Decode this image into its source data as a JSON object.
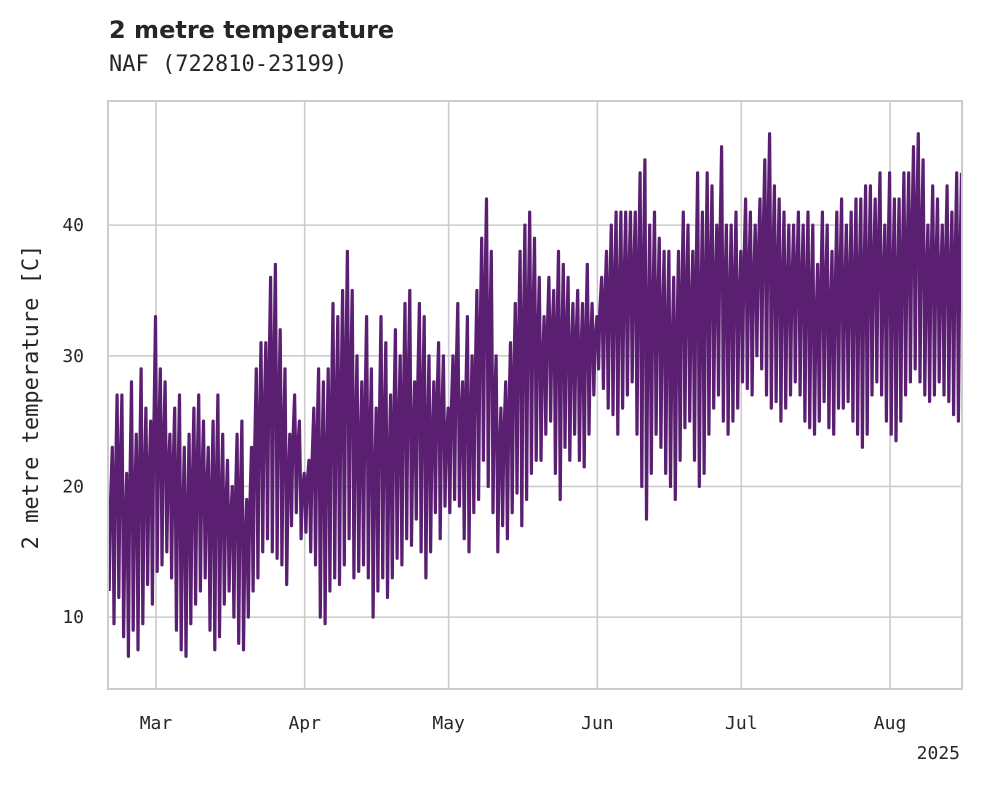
{
  "chart_data": {
    "type": "line",
    "title": "2 metre temperature",
    "subtitle": "NAF (722810-23199)",
    "ylabel": "2 metre temperature [C]",
    "xlabel": "",
    "x_range": [
      "2025-02-19",
      "2025-08-16"
    ],
    "ylim": [
      4.5,
      49.5
    ],
    "grid": true,
    "color": "#5b1f72",
    "xticks": [
      {
        "date": "2025-03-01",
        "label": "Mar"
      },
      {
        "date": "2025-04-01",
        "label": "Apr"
      },
      {
        "date": "2025-05-01",
        "label": "May"
      },
      {
        "date": "2025-06-01",
        "label": "Jun"
      },
      {
        "date": "2025-07-01",
        "label": "Jul"
      },
      {
        "date": "2025-08-01",
        "label": "Aug"
      }
    ],
    "year_label": "2025",
    "yticks": [
      10,
      20,
      30,
      40
    ],
    "series": [
      {
        "name": "",
        "x": [
          "2025-02-19",
          "2025-02-20",
          "2025-02-21",
          "2025-02-22",
          "2025-02-23",
          "2025-02-24",
          "2025-02-25",
          "2025-02-26",
          "2025-02-27",
          "2025-02-28",
          "2025-03-01",
          "2025-03-02",
          "2025-03-03",
          "2025-03-04",
          "2025-03-05",
          "2025-03-06",
          "2025-03-07",
          "2025-03-08",
          "2025-03-09",
          "2025-03-10",
          "2025-03-11",
          "2025-03-12",
          "2025-03-13",
          "2025-03-14",
          "2025-03-15",
          "2025-03-16",
          "2025-03-17",
          "2025-03-18",
          "2025-03-19",
          "2025-03-20",
          "2025-03-21",
          "2025-03-22",
          "2025-03-23",
          "2025-03-24",
          "2025-03-25",
          "2025-03-26",
          "2025-03-27",
          "2025-03-28",
          "2025-03-29",
          "2025-03-30",
          "2025-03-31",
          "2025-04-01",
          "2025-04-02",
          "2025-04-03",
          "2025-04-04",
          "2025-04-05",
          "2025-04-06",
          "2025-04-07",
          "2025-04-08",
          "2025-04-09",
          "2025-04-10",
          "2025-04-11",
          "2025-04-12",
          "2025-04-13",
          "2025-04-14",
          "2025-04-15",
          "2025-04-16",
          "2025-04-17",
          "2025-04-18",
          "2025-04-19",
          "2025-04-20",
          "2025-04-21",
          "2025-04-22",
          "2025-04-23",
          "2025-04-24",
          "2025-04-25",
          "2025-04-26",
          "2025-04-27",
          "2025-04-28",
          "2025-04-29",
          "2025-04-30",
          "2025-05-01",
          "2025-05-02",
          "2025-05-03",
          "2025-05-04",
          "2025-05-05",
          "2025-05-06",
          "2025-05-07",
          "2025-05-08",
          "2025-05-09",
          "2025-05-10",
          "2025-05-11",
          "2025-05-12",
          "2025-05-13",
          "2025-05-14",
          "2025-05-15",
          "2025-05-16",
          "2025-05-17",
          "2025-05-18",
          "2025-05-19",
          "2025-05-20",
          "2025-05-21",
          "2025-05-22",
          "2025-05-23",
          "2025-05-24",
          "2025-05-25",
          "2025-05-26",
          "2025-05-27",
          "2025-05-28",
          "2025-05-29",
          "2025-05-30",
          "2025-05-31",
          "2025-06-01",
          "2025-06-02",
          "2025-06-03",
          "2025-06-04",
          "2025-06-05",
          "2025-06-06",
          "2025-06-07",
          "2025-06-08",
          "2025-06-09",
          "2025-06-10",
          "2025-06-11",
          "2025-06-12",
          "2025-06-13",
          "2025-06-14",
          "2025-06-15",
          "2025-06-16",
          "2025-06-17",
          "2025-06-18",
          "2025-06-19",
          "2025-06-20",
          "2025-06-21",
          "2025-06-22",
          "2025-06-23",
          "2025-06-24",
          "2025-06-25",
          "2025-06-26",
          "2025-06-27",
          "2025-06-28",
          "2025-06-29",
          "2025-06-30",
          "2025-07-01",
          "2025-07-02",
          "2025-07-03",
          "2025-07-04",
          "2025-07-05",
          "2025-07-06",
          "2025-07-07",
          "2025-07-08",
          "2025-07-09",
          "2025-07-10",
          "2025-07-11",
          "2025-07-12",
          "2025-07-13",
          "2025-07-14",
          "2025-07-15",
          "2025-07-16",
          "2025-07-17",
          "2025-07-18",
          "2025-07-19",
          "2025-07-20",
          "2025-07-21",
          "2025-07-22",
          "2025-07-23",
          "2025-07-24",
          "2025-07-25",
          "2025-07-26",
          "2025-07-27",
          "2025-07-28",
          "2025-07-29",
          "2025-07-30",
          "2025-07-31",
          "2025-08-01",
          "2025-08-02",
          "2025-08-03",
          "2025-08-04",
          "2025-08-05",
          "2025-08-06",
          "2025-08-07",
          "2025-08-08",
          "2025-08-09",
          "2025-08-10",
          "2025-08-11",
          "2025-08-12",
          "2025-08-13",
          "2025-08-14",
          "2025-08-15",
          "2025-08-16"
        ],
        "daily_min": [
          12,
          9.5,
          11.5,
          8.5,
          7,
          9,
          7.5,
          9.5,
          12.5,
          11,
          13.5,
          14,
          15,
          13,
          9,
          7.5,
          7,
          9.5,
          11,
          12,
          13,
          9,
          7.5,
          8.5,
          11,
          12,
          10,
          8,
          7.5,
          10,
          12,
          13,
          15,
          16,
          15,
          14.5,
          14,
          12.5,
          17,
          18,
          16,
          16.5,
          15,
          14,
          10,
          9.5,
          12,
          13,
          12.5,
          14,
          16,
          13,
          13.5,
          14,
          13,
          10,
          12,
          13,
          11.5,
          13,
          14.5,
          14,
          16,
          15.5,
          17.5,
          15,
          13,
          15,
          18,
          16,
          18.5,
          18,
          19,
          18.5,
          16,
          15,
          18,
          19,
          22,
          20,
          18,
          15,
          17,
          16,
          18,
          19.5,
          17,
          19,
          21,
          22,
          22,
          24,
          25,
          21,
          19,
          23,
          22,
          24,
          22,
          21.5,
          24,
          27,
          29,
          27.5,
          26,
          25.5,
          24,
          26,
          27,
          28,
          24,
          20,
          17.5,
          21,
          24,
          23,
          21,
          20,
          19,
          22,
          24.5,
          25,
          22,
          20,
          21,
          24,
          26,
          27,
          25,
          24,
          25,
          26,
          28,
          27.5,
          27,
          30,
          29,
          27,
          26,
          26.5,
          25,
          26,
          27,
          28,
          27,
          25,
          24.5,
          24,
          25,
          26.5,
          24.5,
          24,
          26,
          26,
          26.5,
          25,
          24,
          23,
          24,
          27,
          28,
          27,
          25,
          24,
          23.5,
          25,
          27,
          28,
          29,
          28,
          27,
          26.5,
          27,
          28,
          27,
          26.5,
          25.5,
          25,
          25.5
        ],
        "daily_max": [
          23,
          27,
          27,
          21,
          28,
          24,
          29,
          26,
          25,
          33,
          29,
          28,
          24,
          26,
          27,
          23,
          24,
          26,
          27,
          25,
          23,
          25,
          27,
          24,
          22,
          20,
          24,
          25,
          19,
          23,
          29,
          31,
          31,
          36,
          37,
          32,
          29,
          24,
          27,
          25,
          21,
          22,
          26,
          29,
          28,
          29,
          34,
          33,
          35,
          38,
          35,
          30,
          28,
          33,
          29,
          26,
          33,
          31,
          27,
          32,
          30,
          34,
          35,
          28,
          34,
          33,
          30,
          28,
          31,
          30,
          26,
          30,
          34,
          28,
          33,
          30,
          35,
          39,
          42,
          38,
          30,
          26,
          28,
          31,
          34,
          38,
          40,
          41,
          39,
          36,
          33,
          36,
          35,
          38,
          37,
          36,
          34,
          35,
          34,
          37,
          34,
          33,
          36,
          38,
          40,
          41,
          41,
          41,
          41,
          41,
          44,
          45,
          40,
          41,
          39,
          38,
          38,
          36,
          38,
          41,
          40,
          38,
          44,
          41,
          44,
          43,
          40,
          46,
          40,
          40,
          41,
          38,
          42,
          41,
          40,
          42,
          45,
          47,
          43,
          42,
          41,
          40,
          40,
          41,
          40,
          41,
          40,
          37,
          41,
          40,
          38,
          41,
          42,
          40,
          41,
          42,
          42,
          43,
          43,
          42,
          44,
          40,
          44,
          42,
          42,
          44,
          44,
          46,
          47,
          45,
          40,
          43,
          42,
          40,
          43,
          41,
          44,
          44,
          45,
          45
        ]
      }
    ]
  }
}
